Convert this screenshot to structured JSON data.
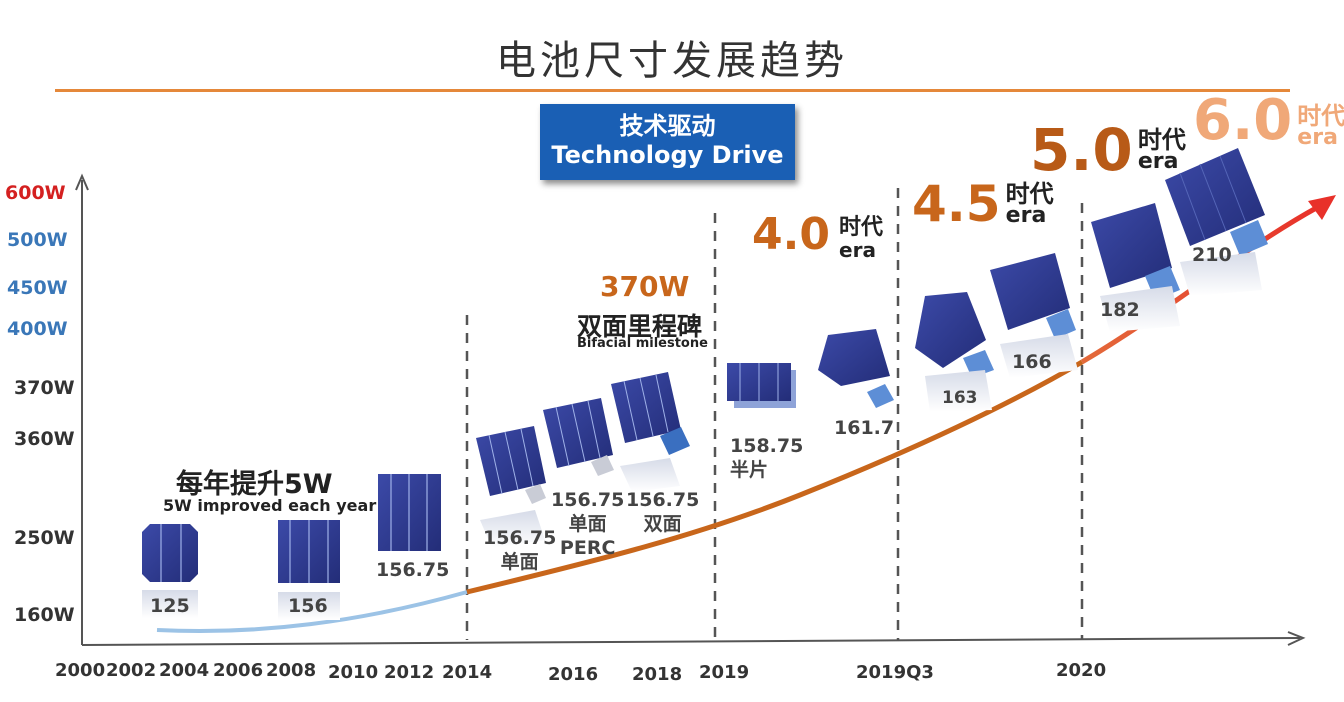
{
  "header": {
    "title": "电池尺寸发展趋势"
  },
  "banner": {
    "title_zh": "技术驱动",
    "title_en": "Technology Drive"
  },
  "colors": {
    "accent_orange": "#e5883a",
    "curve_blue": "#9cc3e6",
    "curve_orange": "#c8661b",
    "arrow_red": "#e8312a",
    "banner_blue": "#1a5fb4",
    "wafer_blue": "#2e3a8c",
    "label_blue": "#3a77b8",
    "label_red": "#d42020"
  },
  "y_axis": {
    "labels": [
      {
        "text": "600W",
        "color": "#d42020"
      },
      {
        "text": "500W",
        "color": "#3a77b8"
      },
      {
        "text": "450W",
        "color": "#3a77b8"
      },
      {
        "text": "400W",
        "color": "#3a77b8"
      },
      {
        "text": "370W",
        "color": "#333333"
      },
      {
        "text": "360W",
        "color": "#333333"
      },
      {
        "text": "250W",
        "color": "#333333"
      },
      {
        "text": "160W",
        "color": "#333333"
      }
    ]
  },
  "x_axis": {
    "labels": [
      "2000",
      "2002",
      "2004",
      "2006",
      "2008",
      "2010",
      "2012",
      "2014",
      "2016",
      "2018",
      "2019",
      "2019Q3",
      "2020"
    ]
  },
  "annotations": {
    "yearly": {
      "zh": "每年提升5W",
      "en": "5W improved each year"
    },
    "bifacial": {
      "power": "370W",
      "zh": "双面里程碑",
      "en": "Bifacial milestone"
    }
  },
  "eras": [
    {
      "num": "4.0",
      "zh": "时代",
      "en": "era"
    },
    {
      "num": "4.5",
      "zh": "时代",
      "en": "era"
    },
    {
      "num": "5.0",
      "zh": "时代",
      "en": "era"
    },
    {
      "num": "6.0",
      "zh": "时代",
      "en": "era"
    }
  ],
  "wafers": [
    {
      "label": "125"
    },
    {
      "label": "156"
    },
    {
      "label": "156.75"
    },
    {
      "label_1": "156.75",
      "label_2": "单面"
    },
    {
      "label_1": "156.75",
      "label_2": "单面",
      "label_3": "PERC"
    },
    {
      "label_1": "156.75",
      "label_2": "双面"
    },
    {
      "label_1": "158.75",
      "label_2": "半片"
    },
    {
      "label": "161.7"
    },
    {
      "label": "163"
    },
    {
      "label": "166"
    },
    {
      "label": "182"
    },
    {
      "label": "210"
    }
  ]
}
